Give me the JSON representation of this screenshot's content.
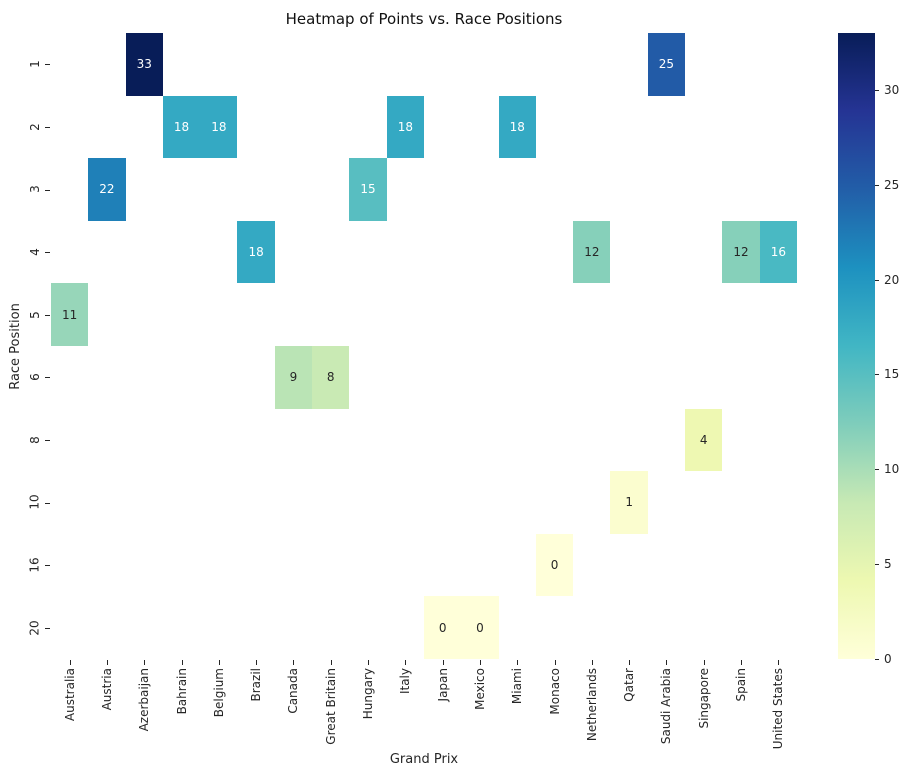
{
  "chart_data": {
    "type": "heatmap",
    "title": "Heatmap of Points vs. Race Positions",
    "xlabel": "Grand Prix",
    "ylabel": "Race Position",
    "colormap": "YlGnBu",
    "vmin": 0,
    "vmax": 33,
    "grid": false,
    "legend_position": "right-colorbar",
    "x_categories": [
      "Australia",
      "Austria",
      "Azerbaijan",
      "Bahrain",
      "Belgium",
      "Brazil",
      "Canada",
      "Great Britain",
      "Hungary",
      "Italy",
      "Japan",
      "Mexico",
      "Miami",
      "Monaco",
      "Netherlands",
      "Qatar",
      "Saudi Arabia",
      "Singapore",
      "Spain",
      "United States"
    ],
    "y_categories": [
      "1",
      "2",
      "3",
      "4",
      "5",
      "6",
      "8",
      "10",
      "16",
      "20"
    ],
    "values": [
      [
        null,
        null,
        33,
        null,
        null,
        null,
        null,
        null,
        null,
        null,
        null,
        null,
        null,
        null,
        null,
        null,
        25,
        null,
        null,
        null
      ],
      [
        null,
        null,
        null,
        18,
        18,
        null,
        null,
        null,
        null,
        18,
        null,
        null,
        18,
        null,
        null,
        null,
        null,
        null,
        null,
        null
      ],
      [
        null,
        22,
        null,
        null,
        null,
        null,
        null,
        null,
        15,
        null,
        null,
        null,
        null,
        null,
        null,
        null,
        null,
        null,
        null,
        null
      ],
      [
        null,
        null,
        null,
        null,
        null,
        18,
        null,
        null,
        null,
        null,
        null,
        null,
        null,
        null,
        12,
        null,
        null,
        null,
        12,
        16
      ],
      [
        11,
        null,
        null,
        null,
        null,
        null,
        null,
        null,
        null,
        null,
        null,
        null,
        null,
        null,
        null,
        null,
        null,
        null,
        null,
        null
      ],
      [
        null,
        null,
        null,
        null,
        null,
        null,
        9,
        8,
        null,
        null,
        null,
        null,
        null,
        null,
        null,
        null,
        null,
        null,
        null,
        null
      ],
      [
        null,
        null,
        null,
        null,
        null,
        null,
        null,
        null,
        null,
        null,
        null,
        null,
        null,
        null,
        null,
        null,
        null,
        4,
        null,
        null
      ],
      [
        null,
        null,
        null,
        null,
        null,
        null,
        null,
        null,
        null,
        null,
        null,
        null,
        null,
        null,
        null,
        1,
        null,
        null,
        null,
        null
      ],
      [
        null,
        null,
        null,
        null,
        null,
        null,
        null,
        null,
        null,
        null,
        null,
        null,
        null,
        0,
        null,
        null,
        null,
        null,
        null,
        null
      ],
      [
        null,
        null,
        null,
        null,
        null,
        null,
        null,
        null,
        null,
        null,
        0,
        0,
        null,
        null,
        null,
        null,
        null,
        null,
        null,
        null
      ]
    ],
    "colorbar_ticks": [
      0,
      5,
      10,
      15,
      20,
      25,
      30
    ],
    "colormap_stops": [
      [
        0.0,
        "#ffffd9"
      ],
      [
        0.125,
        "#edf8b1"
      ],
      [
        0.25,
        "#c7e9b4"
      ],
      [
        0.375,
        "#7fcdbb"
      ],
      [
        0.5,
        "#41b6c4"
      ],
      [
        0.625,
        "#1d91c0"
      ],
      [
        0.75,
        "#225ea8"
      ],
      [
        0.875,
        "#253494"
      ],
      [
        1.0,
        "#081d58"
      ]
    ],
    "empty_cell_color": "#ffffff",
    "annotation_text_light": "#ffffff",
    "annotation_text_dark": "#262626"
  }
}
